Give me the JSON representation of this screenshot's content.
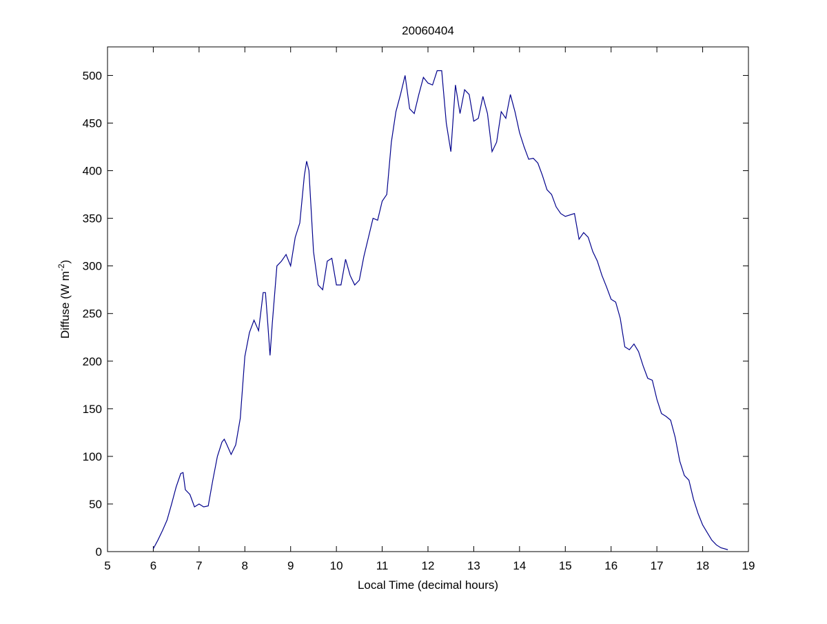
{
  "chart_data": {
    "type": "line",
    "title": "20060404",
    "xlabel": "Local Time (decimal hours)",
    "ylabel": {
      "text": "Diffuse (W m",
      "sup": "-2",
      "end": ")"
    },
    "xlim": [
      5,
      19
    ],
    "xticks": [
      5,
      6,
      7,
      8,
      9,
      10,
      11,
      12,
      13,
      14,
      15,
      16,
      17,
      18,
      19
    ],
    "ylim": [
      0,
      530
    ],
    "yticks": [
      0,
      50,
      100,
      150,
      200,
      250,
      300,
      350,
      400,
      450,
      500
    ],
    "grid": false,
    "series": [
      {
        "color": "#00008b",
        "x": [
          6.0,
          6.1,
          6.2,
          6.3,
          6.4,
          6.5,
          6.6,
          6.65,
          6.7,
          6.8,
          6.9,
          7.0,
          7.1,
          7.2,
          7.3,
          7.4,
          7.5,
          7.55,
          7.6,
          7.7,
          7.8,
          7.9,
          8.0,
          8.1,
          8.2,
          8.3,
          8.4,
          8.45,
          8.5,
          8.55,
          8.6,
          8.7,
          8.8,
          8.9,
          9.0,
          9.1,
          9.2,
          9.3,
          9.35,
          9.4,
          9.5,
          9.6,
          9.7,
          9.8,
          9.9,
          10.0,
          10.1,
          10.2,
          10.3,
          10.4,
          10.5,
          10.6,
          10.7,
          10.8,
          10.9,
          11.0,
          11.1,
          11.2,
          11.3,
          11.4,
          11.5,
          11.6,
          11.7,
          11.8,
          11.9,
          12.0,
          12.1,
          12.2,
          12.3,
          12.4,
          12.5,
          12.6,
          12.7,
          12.8,
          12.9,
          13.0,
          13.1,
          13.2,
          13.3,
          13.4,
          13.5,
          13.6,
          13.7,
          13.8,
          13.9,
          14.0,
          14.1,
          14.2,
          14.3,
          14.4,
          14.5,
          14.6,
          14.7,
          14.8,
          14.9,
          15.0,
          15.2,
          15.3,
          15.4,
          15.5,
          15.6,
          15.7,
          15.8,
          15.9,
          16.0,
          16.1,
          16.2,
          16.3,
          16.4,
          16.5,
          16.6,
          16.7,
          16.8,
          16.9,
          17.0,
          17.1,
          17.2,
          17.3,
          17.4,
          17.5,
          17.6,
          17.7,
          17.8,
          17.9,
          18.0,
          18.1,
          18.2,
          18.3,
          18.4,
          18.55
        ],
        "values": [
          3,
          12,
          22,
          33,
          50,
          68,
          82,
          83,
          65,
          60,
          47,
          50,
          47,
          48,
          75,
          100,
          115,
          118,
          113,
          102,
          112,
          140,
          205,
          230,
          243,
          232,
          272,
          272,
          240,
          206,
          240,
          300,
          305,
          312,
          300,
          330,
          345,
          395,
          410,
          400,
          315,
          280,
          275,
          305,
          308,
          280,
          280,
          307,
          290,
          280,
          285,
          310,
          330,
          350,
          348,
          368,
          375,
          430,
          462,
          480,
          500,
          465,
          460,
          480,
          498,
          492,
          490,
          505,
          505,
          450,
          420,
          490,
          460,
          485,
          480,
          452,
          455,
          478,
          460,
          420,
          430,
          462,
          455,
          480,
          462,
          440,
          425,
          412,
          413,
          408,
          395,
          380,
          375,
          362,
          355,
          352,
          355,
          328,
          335,
          330,
          315,
          305,
          290,
          278,
          265,
          262,
          245,
          215,
          212,
          218,
          210,
          195,
          182,
          180,
          160,
          145,
          142,
          138,
          120,
          95,
          80,
          75,
          55,
          40,
          28,
          20,
          12,
          7,
          4,
          2
        ]
      }
    ]
  }
}
